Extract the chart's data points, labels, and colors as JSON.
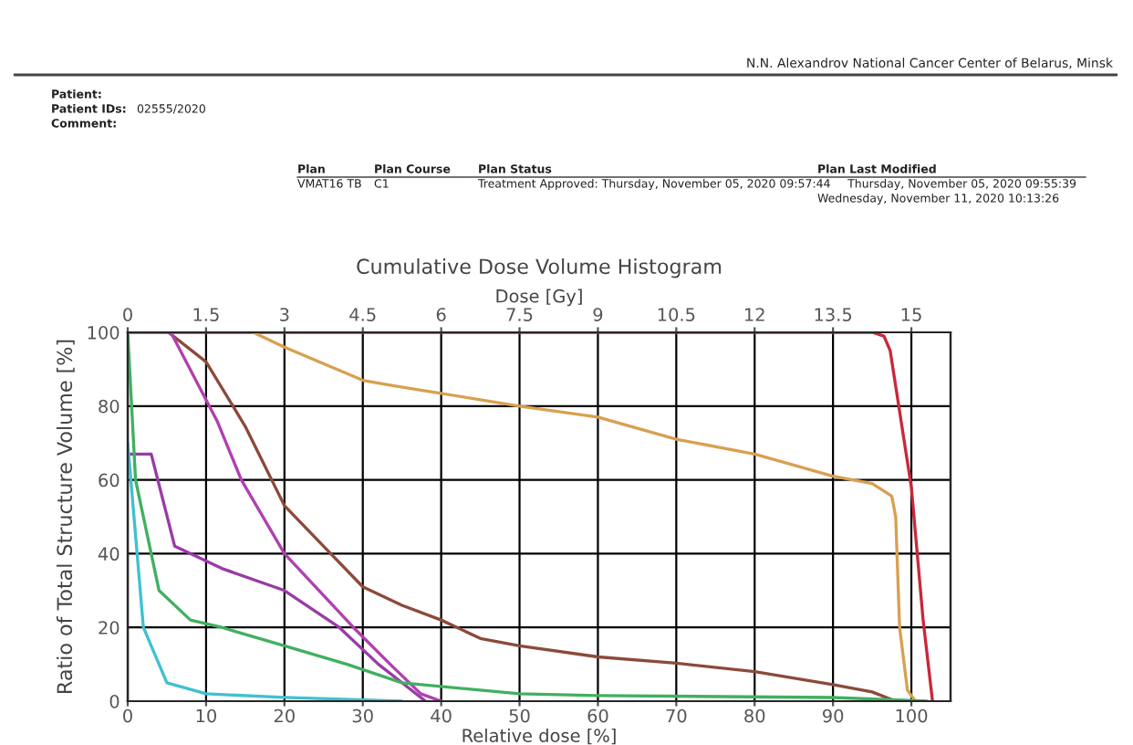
{
  "chart_data": {
    "type": "line",
    "title": "Cumulative Dose Volume Histogram",
    "xlabel": "Relative dose [%]",
    "x2label": "Dose [Gy]",
    "ylabel": "Ratio of Total Structure Volume [%]",
    "annotations": [
      "N.N. Alexandrov National Cancer Center of Belarus, Minsk",
      "Patient:",
      "Patient IDs:",
      "02555/2020",
      "Comment:",
      "Plan",
      "Plan Course",
      "Plan Status",
      "Plan Last Modified",
      "VMAT16 TB",
      "C1",
      "Treatment Approved: Thursday, November 05, 2020 09:57:44",
      "Thursday, November 05, 2020 09:55:39",
      "Wednesday, November 11, 2020 10:13:26"
    ],
    "xlim": [
      0,
      105
    ],
    "xticks": [
      0,
      10,
      20,
      30,
      40,
      50,
      60,
      70,
      80,
      90,
      100
    ],
    "x2lim": [
      0,
      15.75
    ],
    "x2ticks": [
      0,
      1.5,
      3,
      4.5,
      6,
      7.5,
      9,
      10.5,
      12,
      13.5,
      15
    ],
    "ylim": [
      0,
      100
    ],
    "yticks": [
      0,
      20,
      40,
      60,
      80,
      100
    ],
    "grid": true,
    "marker": "none",
    "line_style": "solid",
    "series": [
      {
        "color": "#c8283c",
        "x": [
          0,
          95,
          96.5,
          97.3,
          100,
          101.5,
          102.7
        ],
        "values": [
          100,
          100,
          99,
          95,
          58,
          22,
          0
        ]
      },
      {
        "color": "#d8a050",
        "x": [
          16,
          20,
          30,
          34,
          50,
          60,
          70,
          80,
          90,
          95,
          97.5,
          98,
          98.5,
          99.5,
          100.5
        ],
        "values": [
          100,
          96,
          87,
          85.5,
          80,
          77,
          71,
          67,
          61,
          59,
          55.6,
          50,
          20,
          3,
          0
        ]
      },
      {
        "color": "#8b4a3a",
        "x": [
          5.2,
          10,
          15,
          20,
          25,
          30,
          35,
          40,
          45,
          50,
          60,
          70,
          80,
          90,
          95,
          98
        ],
        "values": [
          100,
          92,
          74.5,
          53,
          42,
          31,
          26,
          22,
          17,
          15,
          12,
          10.3,
          8,
          4.5,
          2.5,
          0
        ]
      },
      {
        "color": "#b040b0",
        "x": [
          5.5,
          11.4,
          14.5,
          20,
          28.8,
          33.5,
          37.4,
          40
        ],
        "values": [
          100,
          76,
          60,
          40,
          20,
          10,
          2,
          0
        ]
      },
      {
        "color": "#9a3aa8",
        "x": [
          0,
          3,
          6,
          12,
          20,
          27,
          32,
          35,
          38
        ],
        "values": [
          67,
          67,
          42,
          36,
          30,
          20,
          10,
          5,
          0
        ]
      },
      {
        "color": "#40b060",
        "x": [
          0,
          1,
          4,
          8,
          12,
          20,
          28,
          35,
          45,
          50,
          60,
          90,
          102
        ],
        "values": [
          100,
          60,
          30,
          22,
          20,
          15,
          10,
          5,
          3,
          2,
          1.5,
          1,
          0
        ]
      },
      {
        "color": "#40c0d0",
        "x": [
          0,
          2,
          5,
          10,
          20,
          35
        ],
        "values": [
          70,
          20,
          5,
          2,
          1,
          0
        ]
      }
    ]
  }
}
